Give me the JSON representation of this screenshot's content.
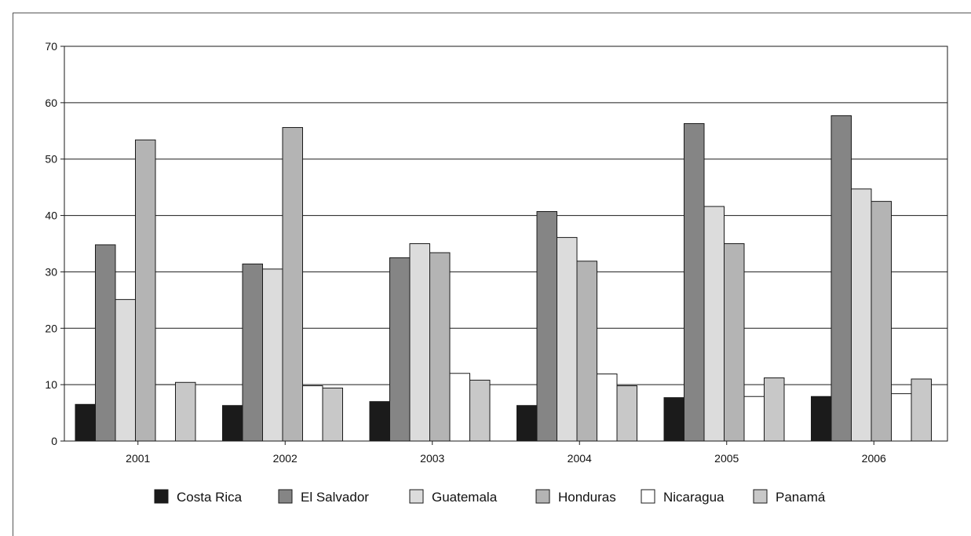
{
  "chart_data": {
    "type": "bar",
    "categories": [
      "2001",
      "2002",
      "2003",
      "2004",
      "2005",
      "2006"
    ],
    "series": [
      {
        "name": "Costa Rica",
        "color": "#1b1b1b",
        "values": [
          6.5,
          6.3,
          7.0,
          6.3,
          7.7,
          7.9
        ]
      },
      {
        "name": "El Salvador",
        "color": "#858585",
        "values": [
          34.8,
          31.4,
          32.5,
          40.7,
          56.3,
          57.7
        ]
      },
      {
        "name": "Guatemala",
        "color": "#dcdcdc",
        "values": [
          25.1,
          30.5,
          35.0,
          36.1,
          41.6,
          44.7
        ]
      },
      {
        "name": "Honduras",
        "color": "#b4b4b4",
        "values": [
          53.4,
          55.6,
          33.4,
          31.9,
          35.0,
          42.5
        ]
      },
      {
        "name": "Nicaragua",
        "color": "#ffffff",
        "values": [
          10.0,
          9.8,
          12.0,
          11.9,
          7.9,
          8.4
        ]
      },
      {
        "name": "Panamá",
        "color": "#c8c8c8",
        "values": [
          10.4,
          9.4,
          10.8,
          9.8,
          11.2,
          11.0
        ]
      }
    ],
    "ylim": [
      0,
      70
    ],
    "yticks": [
      0,
      10,
      20,
      30,
      40,
      50,
      60,
      70
    ],
    "grid": true,
    "legend_position": "bottom",
    "title": "",
    "xlabel": "",
    "ylabel": ""
  }
}
